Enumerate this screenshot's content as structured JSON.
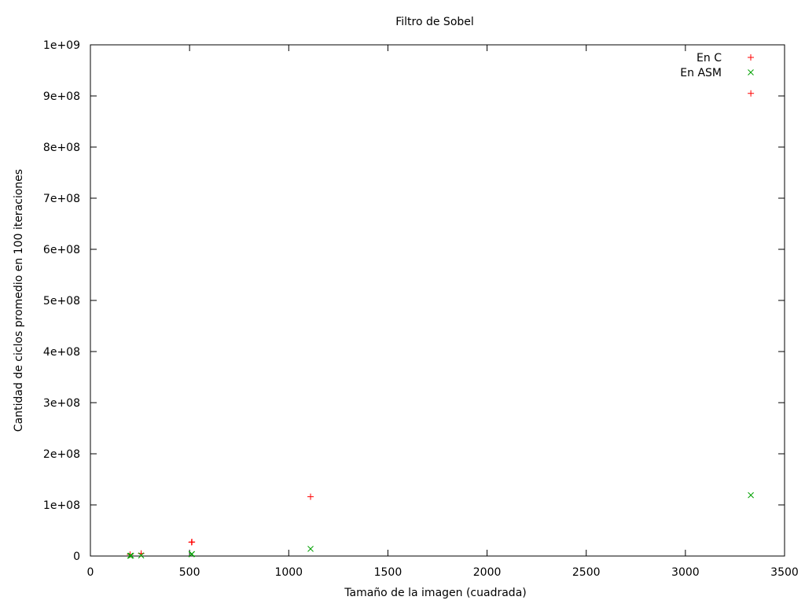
{
  "chart_data": {
    "type": "scatter",
    "title": "Filtro de Sobel",
    "xlabel": "Tamaño de la imagen (cuadrada)",
    "ylabel": "Cantidad de ciclos promedio en 100 iteraciones",
    "xlim": [
      0,
      3500
    ],
    "ylim": [
      0,
      1000000000
    ],
    "x_ticks": [
      0,
      500,
      1000,
      1500,
      2000,
      2500,
      3000,
      3500
    ],
    "x_tick_labels": [
      "0",
      "500",
      "1000",
      "1500",
      "2000",
      "2500",
      "3000",
      "3500"
    ],
    "y_ticks": [
      0,
      100000000,
      200000000,
      300000000,
      400000000,
      500000000,
      600000000,
      700000000,
      800000000,
      900000000,
      1000000000
    ],
    "y_tick_labels": [
      "0",
      "1e+08",
      "2e+08",
      "3e+08",
      "4e+08",
      "5e+08",
      "6e+08",
      "7e+08",
      "8e+08",
      "9e+08",
      "1e+09"
    ],
    "grid": false,
    "legend_position": "top-right",
    "series": [
      {
        "name": "En C",
        "marker": "plus",
        "color": "#ff0000",
        "points": [
          {
            "x": 200,
            "y": 3000000
          },
          {
            "x": 256,
            "y": 5000000
          },
          {
            "x": 510,
            "y": 27000000
          },
          {
            "x": 512,
            "y": 27500000
          },
          {
            "x": 1110,
            "y": 116000000
          },
          {
            "x": 3330,
            "y": 905000000
          }
        ]
      },
      {
        "name": "En ASM",
        "marker": "cross",
        "color": "#00a000",
        "points": [
          {
            "x": 200,
            "y": 500000
          },
          {
            "x": 205,
            "y": 800000
          },
          {
            "x": 256,
            "y": 1200000
          },
          {
            "x": 510,
            "y": 3500000
          },
          {
            "x": 512,
            "y": 3800000
          },
          {
            "x": 1110,
            "y": 14000000
          },
          {
            "x": 3330,
            "y": 119000000
          }
        ]
      }
    ]
  }
}
